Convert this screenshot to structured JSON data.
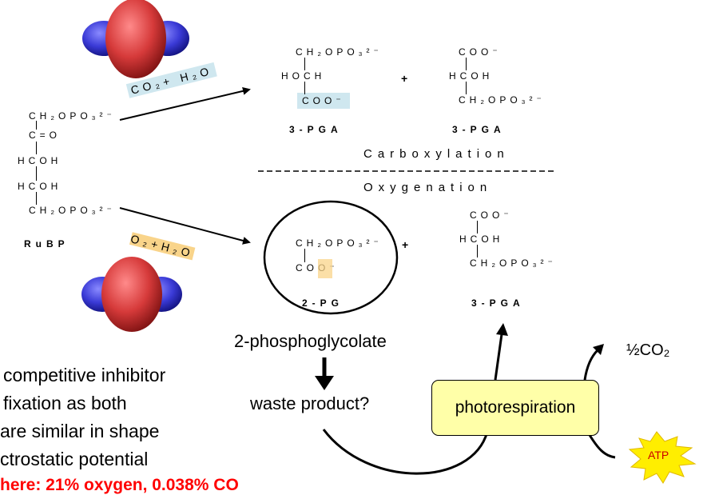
{
  "rubp": {
    "line1": "CH₂OPO₃²⁻",
    "line2": "C=O",
    "line3": "HCOH",
    "line4": "HCOH",
    "line5": "CH₂OPO₃²⁻",
    "label": "RuBP"
  },
  "reagents": {
    "co2": "CO₂+ H₂O",
    "o2": "O₂+H₂O"
  },
  "carboxylation_products": {
    "pga1_line1": "CH₂OPO₃²⁻",
    "pga1_line2": "HOCH",
    "pga1_line3": "COO⁻",
    "pga1_label": "3-PGA",
    "plus": "+",
    "pga2_line1": "COO⁻",
    "pga2_line2": "HCOH",
    "pga2_line3": "CH₂OPO₃²⁻",
    "pga2_label": "3-PGA",
    "title": "Carboxylation"
  },
  "oxygenation_products": {
    "title": "Oxygenation",
    "pg_line1": "CH₂OPO₃²⁻",
    "pg_line2": "COO⁻",
    "pg_label": "2-PG",
    "plus": "+",
    "pga_line1": "COO⁻",
    "pga_line2": "HCOH",
    "pga_line3": "CH₂OPO₃²⁻",
    "pga_label": "3-PGA"
  },
  "labels": {
    "phosphoglycolate": "2-phosphoglycolate",
    "waste": "waste product?",
    "photorespiration": "photorespiration",
    "half_co2": "½CO₂",
    "atp": "ATP"
  },
  "body_text": {
    "line1": "competitive inhibitor",
    "line2": "fixation as both",
    "line3": "are similar in shape",
    "line4": "ctrostatic potential",
    "line5": "here: 21% oxygen, 0.038% CO"
  },
  "colors": {
    "orbital_red": "#d63a3a",
    "orbital_blue": "#3a3ad6",
    "highlight_blue": "#cfe7ef",
    "highlight_orange": "#f9d48a",
    "box_fill": "#ffffa8",
    "starburst": "#ffee00",
    "atp_text": "#cc0000",
    "warning_text": "#ff0000"
  }
}
